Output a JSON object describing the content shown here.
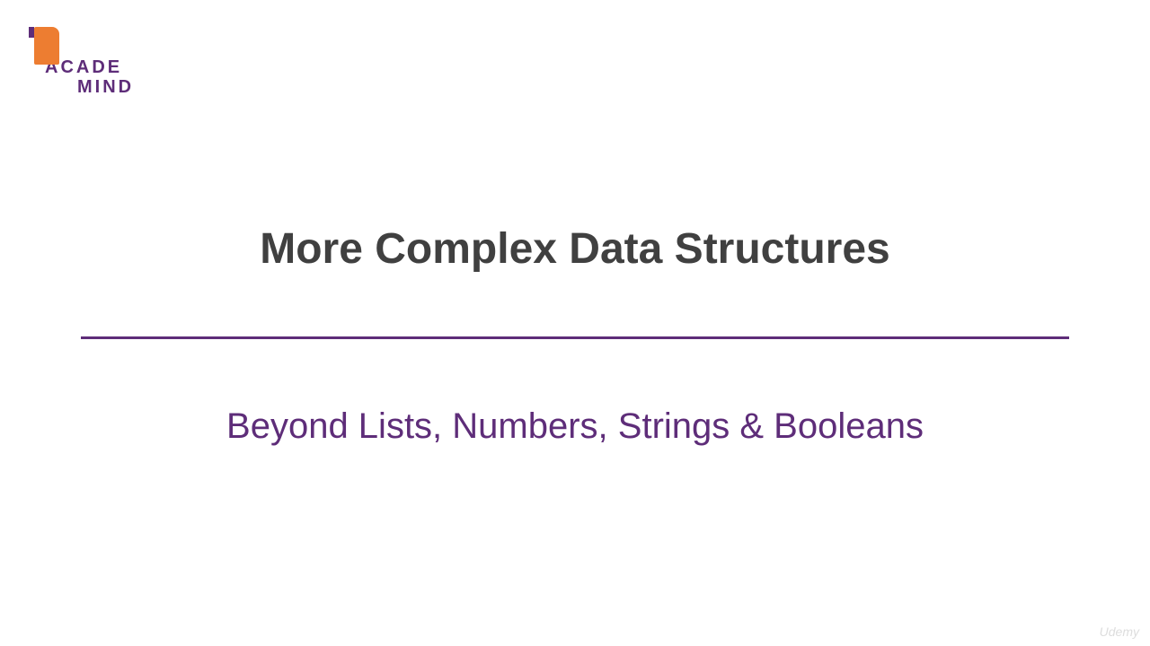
{
  "logo": {
    "line1": "ACADE",
    "line2": "MIND",
    "mark_color": "#ed7d31",
    "text_color": "#5e2d79"
  },
  "slide": {
    "title": "More Complex Data Structures",
    "subtitle": "Beyond Lists, Numbers, Strings & Booleans",
    "title_color": "#404040",
    "subtitle_color": "#5e2d79",
    "divider_color": "#5e2d79",
    "background_color": "#ffffff",
    "title_fontsize": 48,
    "subtitle_fontsize": 40
  },
  "watermark": {
    "text": "Udemy"
  }
}
